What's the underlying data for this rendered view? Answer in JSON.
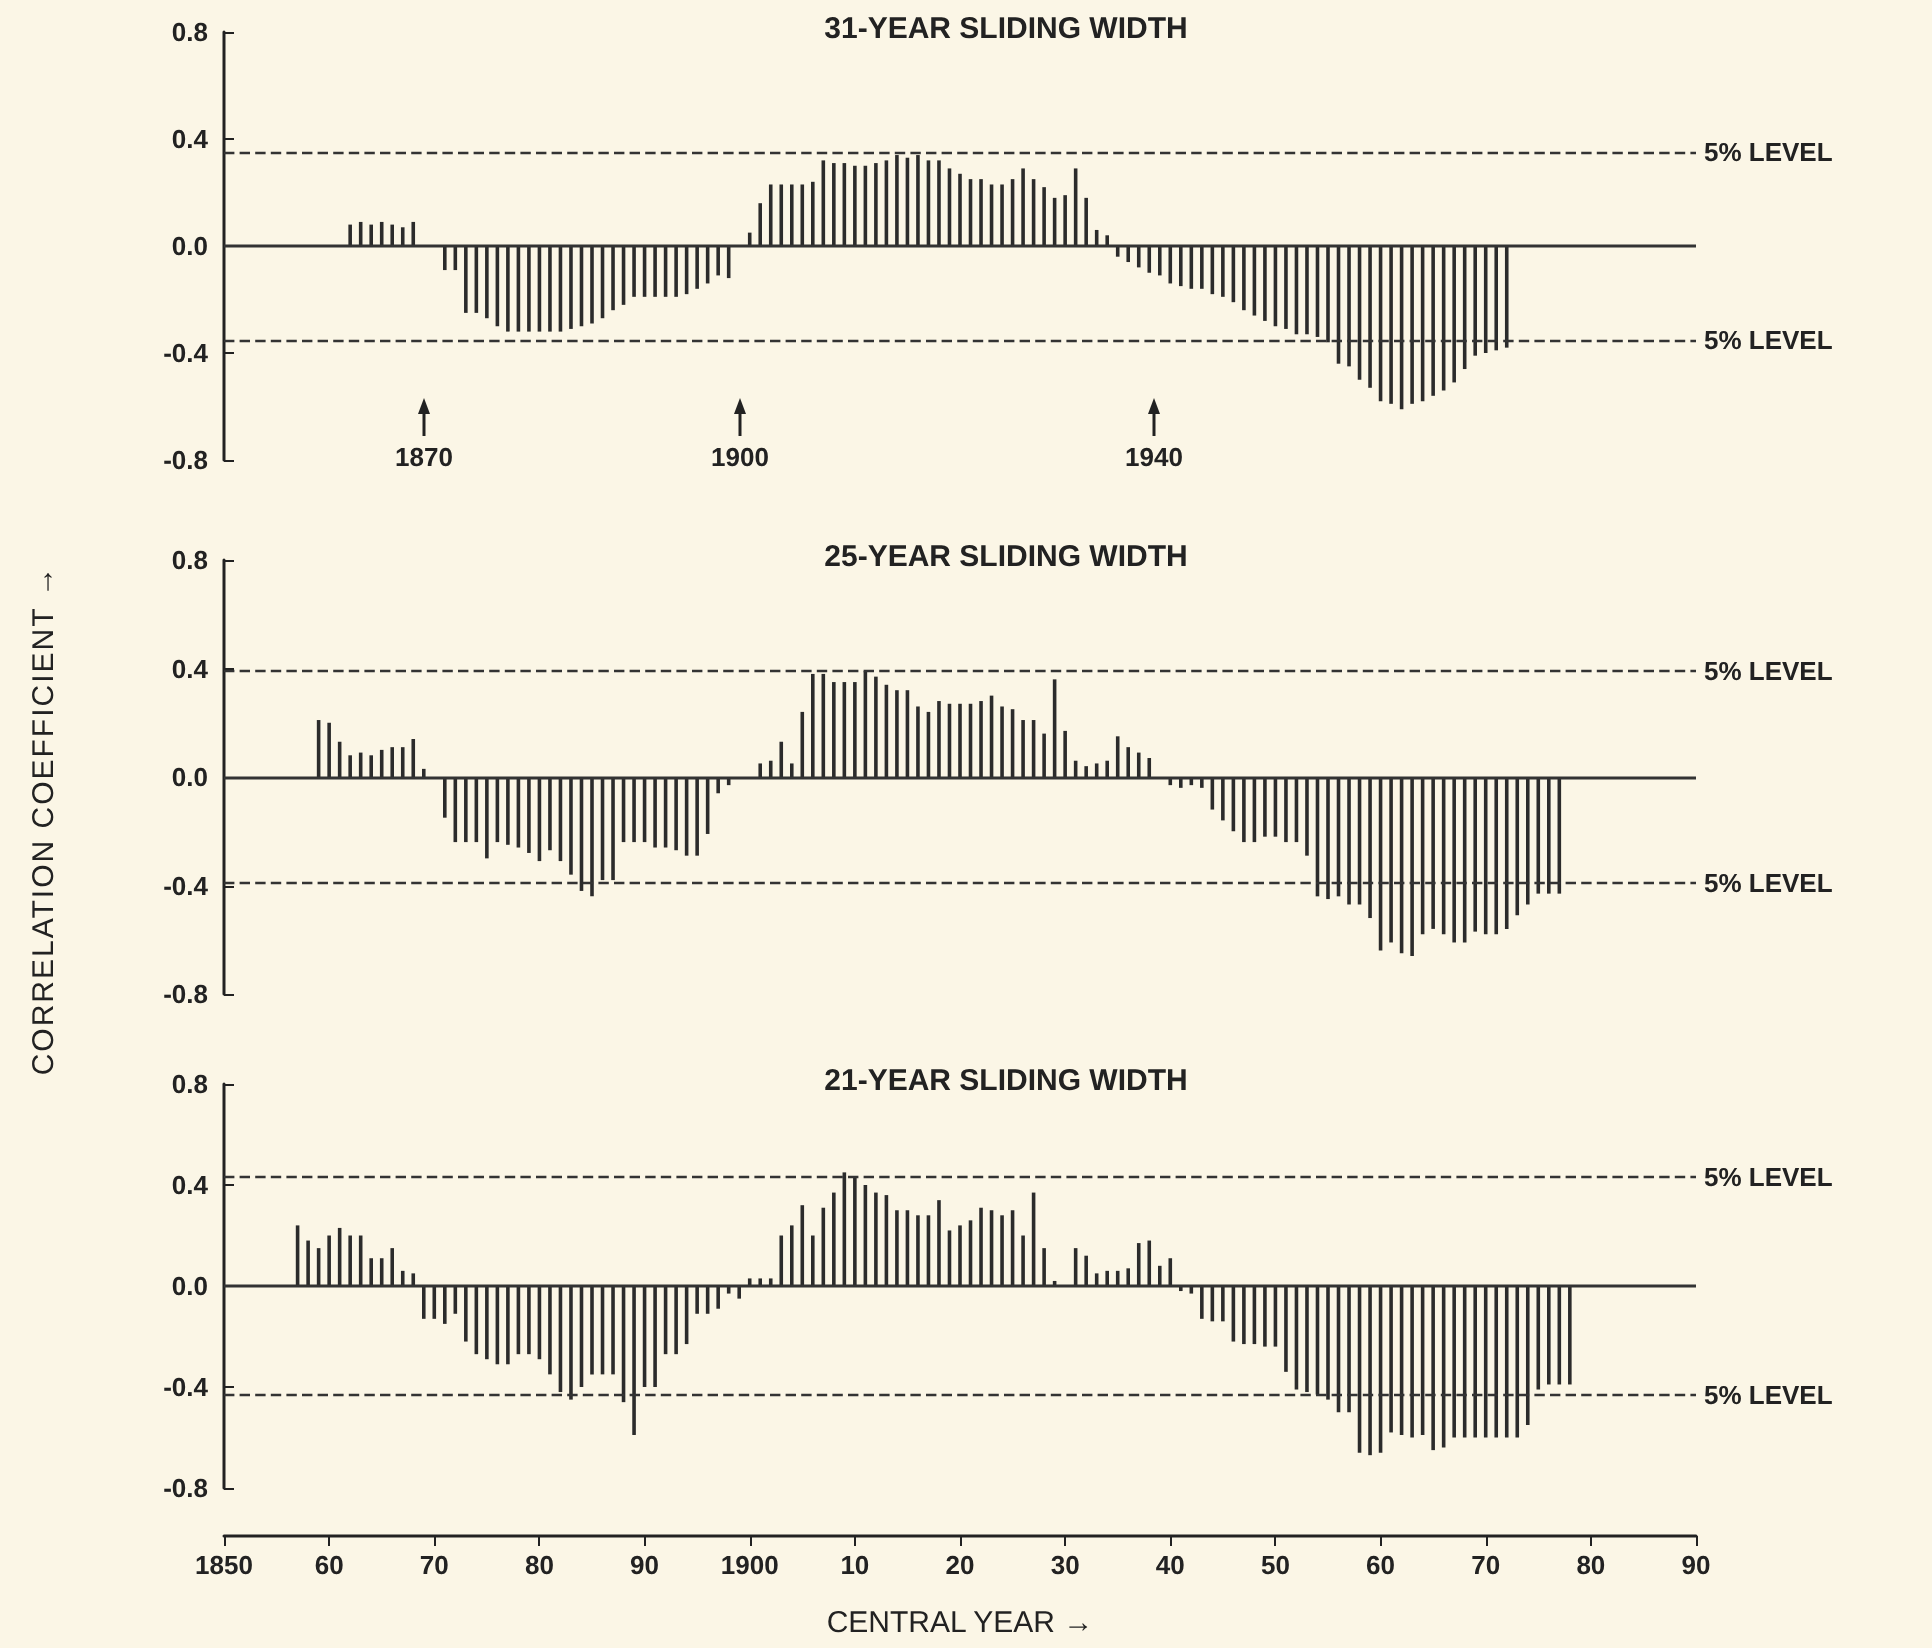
{
  "chart_data": [
    {
      "type": "bar",
      "title": "31-YEAR SLIDING WIDTH",
      "tick_labels": "y",
      "xlim": [
        1850,
        1990
      ],
      "ylim": [
        -0.8,
        0.8
      ],
      "yticks": [
        0.8,
        0.4,
        -0.4,
        -0.8
      ],
      "series": [
        {
          "color": "#2b2b2b",
          "x": [
            1862,
            1863,
            1864,
            1865,
            1866,
            1867,
            1868,
            1869,
            1870,
            1871,
            1872,
            1873,
            1874,
            1875,
            1876,
            1877,
            1878,
            1879,
            1880,
            1881,
            1882,
            1883,
            1884,
            1885,
            1886,
            1887,
            1888,
            1889,
            1890,
            1891,
            1892,
            1893,
            1894,
            1895,
            1896,
            1897,
            1898,
            1899,
            1900,
            1901,
            1902,
            1903,
            1904,
            1905,
            1906,
            1907,
            1908,
            1909,
            1910,
            1911,
            1912,
            1913,
            1914,
            1915,
            1916,
            1917,
            1918,
            1919,
            1920,
            1921,
            1922,
            1923,
            1924,
            1925,
            1926,
            1927,
            1928,
            1929,
            1930,
            1931,
            1932,
            1933,
            1934,
            1935,
            1936,
            1937,
            1938,
            1939,
            1940,
            1941,
            1942,
            1943,
            1944,
            1945,
            1946,
            1947,
            1948,
            1949,
            1950,
            1951,
            1952,
            1953,
            1954,
            1955,
            1956,
            1957,
            1958,
            1959,
            1960,
            1961,
            1962,
            1963,
            1964,
            1965,
            1966,
            1967,
            1968,
            1969,
            1970,
            1971,
            1972
          ],
          "values": [
            0.08,
            0.09,
            0.08,
            0.09,
            0.08,
            0.07,
            0.09,
            null,
            null,
            -0.09,
            -0.09,
            -0.25,
            -0.25,
            -0.27,
            -0.3,
            -0.32,
            -0.32,
            -0.32,
            -0.32,
            -0.32,
            -0.32,
            -0.31,
            -0.3,
            -0.29,
            -0.27,
            -0.24,
            -0.22,
            -0.19,
            -0.19,
            -0.19,
            -0.19,
            -0.19,
            -0.18,
            -0.16,
            -0.14,
            -0.11,
            -0.12,
            null,
            0.05,
            0.16,
            0.23,
            0.23,
            0.23,
            0.23,
            0.24,
            0.32,
            0.31,
            0.31,
            0.3,
            0.3,
            0.31,
            0.32,
            0.34,
            0.33,
            0.34,
            0.32,
            0.32,
            0.29,
            0.27,
            0.25,
            0.25,
            0.23,
            0.23,
            0.25,
            0.29,
            0.25,
            0.22,
            0.18,
            0.19,
            0.29,
            0.18,
            0.06,
            0.04,
            -0.04,
            -0.06,
            -0.08,
            -0.1,
            -0.11,
            -0.14,
            -0.15,
            -0.16,
            -0.16,
            -0.18,
            -0.19,
            -0.21,
            -0.24,
            -0.26,
            -0.28,
            -0.3,
            -0.31,
            -0.33,
            -0.33,
            -0.34,
            -0.36,
            -0.44,
            -0.45,
            -0.5,
            -0.53,
            -0.58,
            -0.59,
            -0.61,
            -0.59,
            -0.58,
            -0.56,
            -0.54,
            -0.51,
            -0.46,
            -0.41,
            -0.4,
            -0.39,
            -0.38
          ]
        }
      ],
      "ref_lines": [
        {
          "axis": "y",
          "value": 0,
          "label": "0.0",
          "line_style": "solid",
          "color": "#333333"
        },
        {
          "axis": "y",
          "value": 0.35,
          "label": "5% LEVEL",
          "line_style": "dashed",
          "color": "#333333"
        },
        {
          "axis": "y",
          "value": -0.35,
          "label": "5% LEVEL",
          "line_style": "dashed",
          "color": "#333333"
        }
      ],
      "annotations": [
        "1870",
        "1900",
        "1940"
      ]
    },
    {
      "type": "bar",
      "title": "25-YEAR SLIDING WIDTH",
      "ylabel": "CORRELATION COEFFICIENT →",
      "tick_labels": "y",
      "xlim": [
        1850,
        1990
      ],
      "ylim": [
        -0.8,
        0.8
      ],
      "yticks": [
        0.8,
        0.4,
        -0.4,
        -0.8
      ],
      "series": [
        {
          "color": "#2b2b2b",
          "x": [
            1859,
            1860,
            1861,
            1862,
            1863,
            1864,
            1865,
            1866,
            1867,
            1868,
            1869,
            1870,
            1871,
            1872,
            1873,
            1874,
            1875,
            1876,
            1877,
            1878,
            1879,
            1880,
            1881,
            1882,
            1883,
            1884,
            1885,
            1886,
            1887,
            1888,
            1889,
            1890,
            1891,
            1892,
            1893,
            1894,
            1895,
            1896,
            1897,
            1898,
            1899,
            1900,
            1901,
            1902,
            1903,
            1904,
            1905,
            1906,
            1907,
            1908,
            1909,
            1910,
            1911,
            1912,
            1913,
            1914,
            1915,
            1916,
            1917,
            1918,
            1919,
            1920,
            1921,
            1922,
            1923,
            1924,
            1925,
            1926,
            1927,
            1928,
            1929,
            1930,
            1931,
            1932,
            1933,
            1934,
            1935,
            1936,
            1937,
            1938,
            1939,
            1940,
            1941,
            1942,
            1943,
            1944,
            1945,
            1946,
            1947,
            1948,
            1949,
            1950,
            1951,
            1952,
            1953,
            1954,
            1955,
            1956,
            1957,
            1958,
            1959,
            1960,
            1961,
            1962,
            1963,
            1964,
            1965,
            1966,
            1967,
            1968,
            1969,
            1970,
            1971,
            1972,
            1973,
            1974,
            1975,
            1976,
            1977
          ],
          "values": [
            0.21,
            0.2,
            0.13,
            0.08,
            0.09,
            0.08,
            0.1,
            0.11,
            0.11,
            0.14,
            0.03,
            null,
            -0.15,
            -0.24,
            -0.24,
            -0.24,
            -0.3,
            -0.24,
            -0.25,
            -0.26,
            -0.28,
            -0.31,
            -0.27,
            -0.31,
            -0.36,
            -0.42,
            -0.44,
            -0.38,
            -0.38,
            -0.24,
            -0.24,
            -0.24,
            -0.26,
            -0.26,
            -0.27,
            -0.29,
            -0.29,
            -0.21,
            -0.06,
            -0.03,
            null,
            null,
            0.05,
            0.06,
            0.13,
            0.05,
            0.24,
            0.38,
            0.38,
            0.35,
            0.35,
            0.35,
            0.39,
            0.37,
            0.34,
            0.32,
            0.32,
            0.26,
            0.24,
            0.28,
            0.27,
            0.27,
            0.27,
            0.28,
            0.3,
            0.26,
            0.25,
            0.21,
            0.21,
            0.16,
            0.36,
            0.17,
            0.06,
            0.04,
            0.05,
            0.06,
            0.15,
            0.11,
            0.09,
            0.07,
            null,
            -0.03,
            -0.04,
            -0.03,
            -0.04,
            -0.12,
            -0.16,
            -0.2,
            -0.24,
            -0.24,
            -0.22,
            -0.22,
            -0.24,
            -0.24,
            -0.29,
            -0.44,
            -0.45,
            -0.44,
            -0.47,
            -0.47,
            -0.52,
            -0.64,
            -0.61,
            -0.65,
            -0.66,
            -0.58,
            -0.56,
            -0.58,
            -0.61,
            -0.61,
            -0.57,
            -0.58,
            -0.58,
            -0.56,
            -0.51,
            -0.47,
            -0.43,
            -0.43,
            -0.43
          ]
        }
      ],
      "ref_lines": [
        {
          "axis": "y",
          "value": 0,
          "label": "0.0",
          "line_style": "solid",
          "color": "#333333"
        },
        {
          "axis": "y",
          "value": 0.39,
          "label": "5% LEVEL",
          "line_style": "dashed",
          "color": "#333333"
        },
        {
          "axis": "y",
          "value": -0.39,
          "label": "5% LEVEL",
          "line_style": "dashed",
          "color": "#333333"
        }
      ]
    },
    {
      "type": "bar",
      "title": "21-YEAR SLIDING WIDTH",
      "xlabel": "CENTRAL YEAR →",
      "xlim": [
        1850,
        1990
      ],
      "ylim": [
        -0.8,
        0.8
      ],
      "xticks": [
        1850,
        {
          "value": 1860,
          "label": "60"
        },
        {
          "value": 1870,
          "label": "70"
        },
        {
          "value": 1880,
          "label": "80"
        },
        {
          "value": 1890,
          "label": "90"
        },
        1900,
        {
          "value": 1910,
          "label": "10"
        },
        {
          "value": 1920,
          "label": "20"
        },
        {
          "value": 1930,
          "label": "30"
        },
        {
          "value": 1940,
          "label": "40"
        },
        {
          "value": 1950,
          "label": "50"
        },
        {
          "value": 1960,
          "label": "60"
        },
        {
          "value": 1970,
          "label": "70"
        },
        {
          "value": 1980,
          "label": "80"
        },
        {
          "value": 1990,
          "label": "90"
        }
      ],
      "yticks": [
        0.8,
        0.4,
        -0.4,
        -0.8
      ],
      "series": [
        {
          "color": "#2b2b2b",
          "x": [
            1857,
            1858,
            1859,
            1860,
            1861,
            1862,
            1863,
            1864,
            1865,
            1866,
            1867,
            1868,
            1869,
            1870,
            1871,
            1872,
            1873,
            1874,
            1875,
            1876,
            1877,
            1878,
            1879,
            1880,
            1881,
            1882,
            1883,
            1884,
            1885,
            1886,
            1887,
            1888,
            1889,
            1890,
            1891,
            1892,
            1893,
            1894,
            1895,
            1896,
            1897,
            1898,
            1899,
            1900,
            1901,
            1902,
            1903,
            1904,
            1905,
            1906,
            1907,
            1908,
            1909,
            1910,
            1911,
            1912,
            1913,
            1914,
            1915,
            1916,
            1917,
            1918,
            1919,
            1920,
            1921,
            1922,
            1923,
            1924,
            1925,
            1926,
            1927,
            1928,
            1929,
            1930,
            1931,
            1932,
            1933,
            1934,
            1935,
            1936,
            1937,
            1938,
            1939,
            1940,
            1941,
            1942,
            1943,
            1944,
            1945,
            1946,
            1947,
            1948,
            1949,
            1950,
            1951,
            1952,
            1953,
            1954,
            1955,
            1956,
            1957,
            1958,
            1959,
            1960,
            1961,
            1962,
            1963,
            1964,
            1965,
            1966,
            1967,
            1968,
            1969,
            1970,
            1971,
            1972,
            1973,
            1974,
            1975,
            1976,
            1977,
            1978
          ],
          "values": [
            0.24,
            0.18,
            0.15,
            0.2,
            0.23,
            0.2,
            0.2,
            0.11,
            0.11,
            0.15,
            0.06,
            0.05,
            -0.13,
            -0.13,
            -0.15,
            -0.11,
            -0.22,
            -0.27,
            -0.29,
            -0.31,
            -0.31,
            -0.27,
            -0.27,
            -0.29,
            -0.35,
            -0.42,
            -0.45,
            -0.4,
            -0.35,
            -0.35,
            -0.35,
            -0.46,
            -0.59,
            -0.4,
            -0.4,
            -0.27,
            -0.27,
            -0.23,
            -0.11,
            -0.11,
            -0.09,
            -0.03,
            -0.05,
            0.03,
            0.03,
            0.03,
            0.2,
            0.24,
            0.32,
            0.2,
            0.31,
            0.37,
            0.45,
            0.43,
            0.4,
            0.37,
            0.36,
            0.3,
            0.3,
            0.28,
            0.28,
            0.34,
            0.22,
            0.24,
            0.26,
            0.31,
            0.3,
            0.28,
            0.3,
            0.2,
            0.37,
            0.15,
            0.02,
            null,
            0.15,
            0.12,
            0.05,
            0.06,
            0.06,
            0.07,
            0.17,
            0.18,
            0.08,
            0.11,
            -0.02,
            -0.03,
            -0.13,
            -0.14,
            -0.14,
            -0.22,
            -0.23,
            -0.23,
            -0.24,
            -0.24,
            -0.34,
            -0.41,
            -0.42,
            -0.43,
            -0.45,
            -0.5,
            -0.5,
            -0.66,
            -0.67,
            -0.66,
            -0.58,
            -0.59,
            -0.6,
            -0.59,
            -0.65,
            -0.64,
            -0.6,
            -0.6,
            -0.6,
            -0.6,
            -0.6,
            -0.6,
            -0.6,
            -0.55,
            -0.41,
            -0.39,
            -0.39,
            -0.39
          ]
        }
      ],
      "ref_lines": [
        {
          "axis": "y",
          "value": 0,
          "label": "0.0",
          "line_style": "solid",
          "color": "#333333"
        },
        {
          "axis": "y",
          "value": 0.43,
          "label": "5% LEVEL",
          "line_style": "dashed",
          "color": "#333333"
        },
        {
          "axis": "y",
          "value": -0.43,
          "label": "5% LEVEL",
          "line_style": "dashed",
          "color": "#333333"
        }
      ]
    }
  ]
}
